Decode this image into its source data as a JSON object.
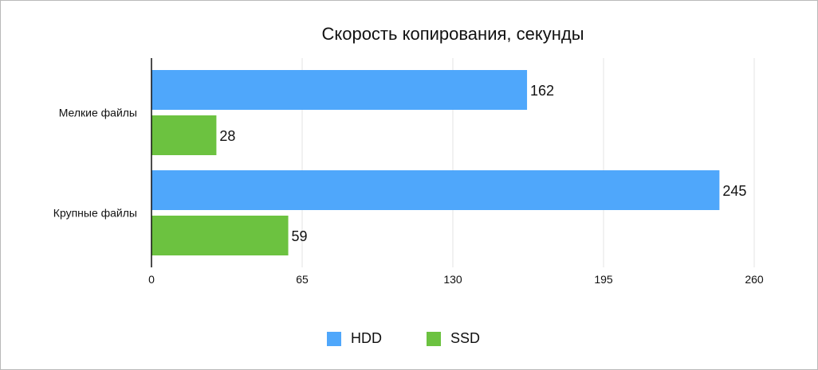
{
  "chart_data": {
    "type": "bar",
    "orientation": "horizontal",
    "title": "Скорость копирования, секунды",
    "categories": [
      "Мелкие файлы",
      "Крупные файлы"
    ],
    "series": [
      {
        "name": "HDD",
        "values": [
          162,
          245
        ],
        "color": "#4fa7fb"
      },
      {
        "name": "SSD",
        "values": [
          28,
          59
        ],
        "color": "#6cc240"
      }
    ],
    "xlim": [
      0,
      260
    ],
    "xticks": [
      0,
      65,
      130,
      195,
      260
    ],
    "xgrid": true,
    "legend": "bottom"
  }
}
